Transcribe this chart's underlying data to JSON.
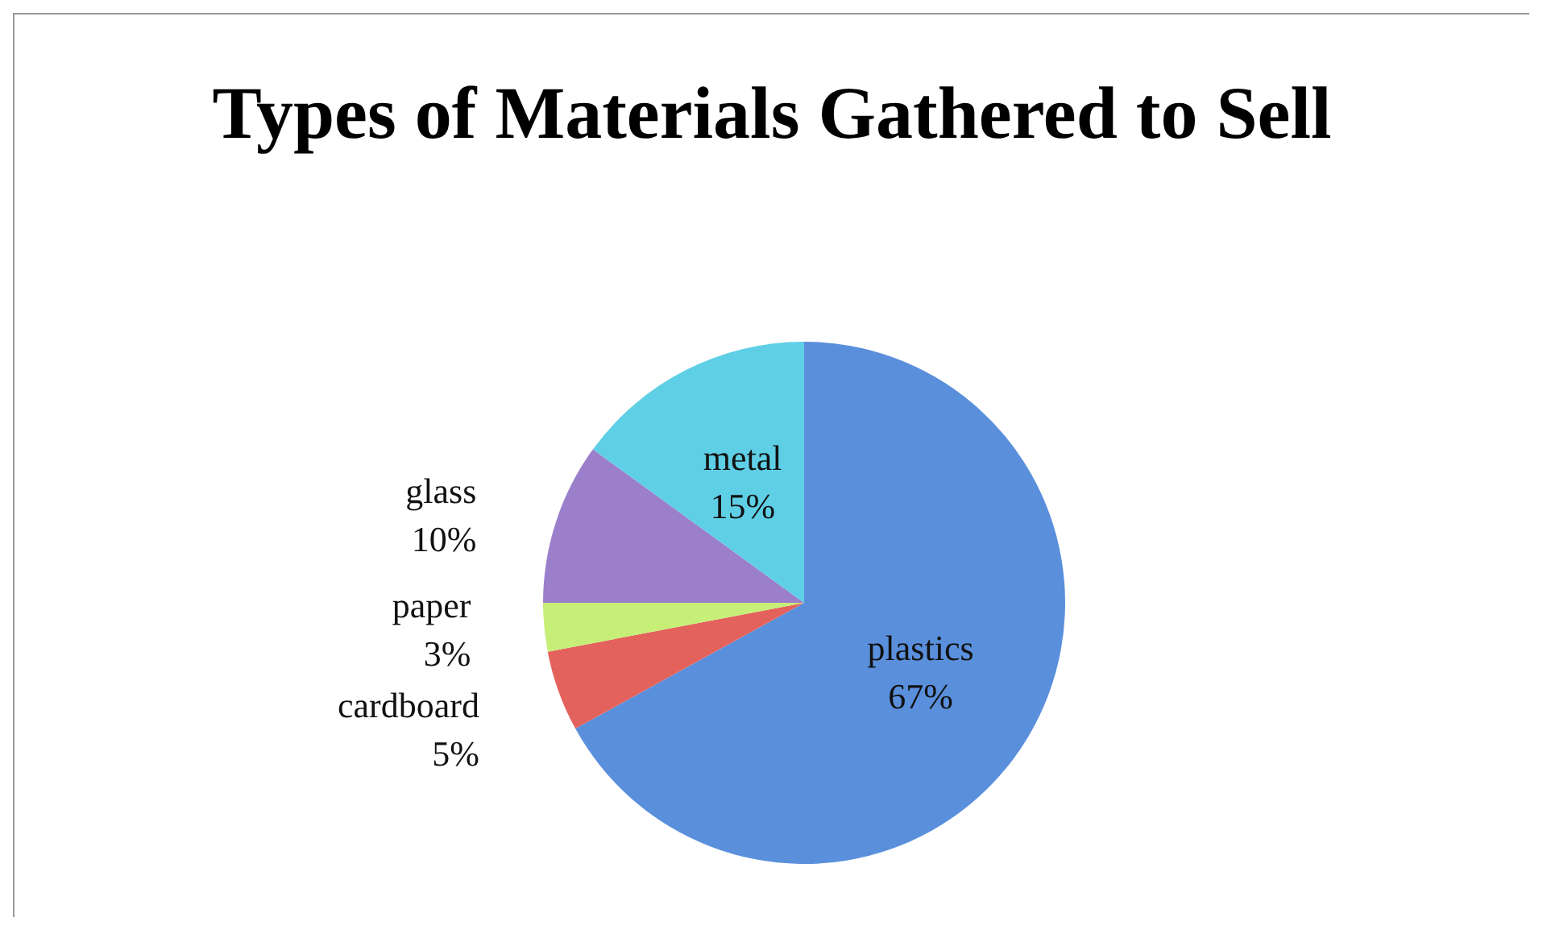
{
  "chart_data": {
    "type": "pie",
    "title": "Types of Materials Gathered to Sell",
    "categories": [
      "plastics",
      "cardboard",
      "paper",
      "glass",
      "metal"
    ],
    "values": [
      67,
      5,
      3,
      10,
      15
    ],
    "value_labels": [
      "67%",
      "5%",
      "3%",
      "10%",
      "15%"
    ],
    "colors": [
      "#5a8fdc",
      "#e4625c",
      "#c6ef78",
      "#9b7fcb",
      "#5fcfe6"
    ],
    "legend": false
  }
}
